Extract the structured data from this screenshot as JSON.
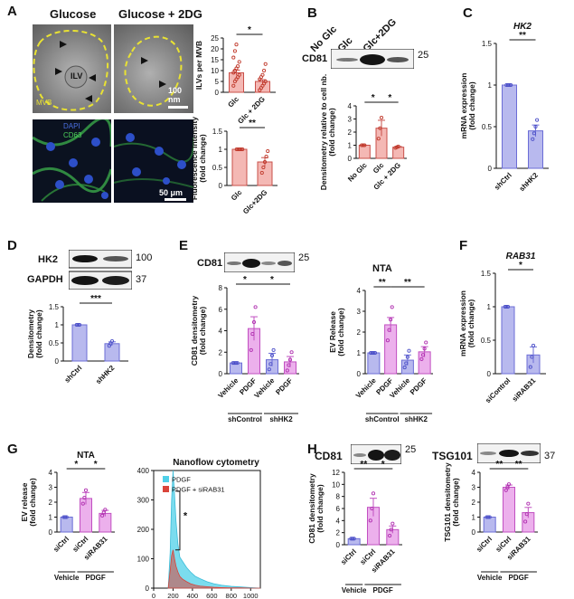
{
  "panel_labels": [
    "A",
    "B",
    "C",
    "D",
    "E",
    "F",
    "G",
    "H"
  ],
  "colors": {
    "red_fill": "#f4b8b4",
    "red_edge": "#c9504a",
    "red_dot": "#c0392b",
    "blue_fill": "#b8b9ee",
    "blue_edge": "#6b6dd6",
    "blue_dot": "#4b4fc8",
    "pink_fill": "#ecb0ec",
    "pink_edge": "#c14fc1",
    "pink_dot": "#b030b0",
    "yellow": "#e9e233",
    "cyan": "#3bbcd8",
    "cyan_fill": "#4fd0e8",
    "red_hist": "#d9443a",
    "blot_band": "#141414"
  },
  "panel_A": {
    "img_labels": [
      "Glucose",
      "Glucose + 2DG"
    ],
    "em_annotations": {
      "ilv": "ILV",
      "mvb": "MVB",
      "scale_em": "100 nm"
    },
    "if_annotations": {
      "dapi": "DAPI",
      "cd63": "CD63",
      "scale_if": "50 μm"
    }
  },
  "panel_B": {
    "lanes": [
      "No Glc",
      "Glc",
      "Glc+2DG"
    ],
    "blot_label": "CD81",
    "mw": "25"
  },
  "panel_D": {
    "blots": [
      "HK2",
      "GAPDH"
    ],
    "mw": [
      "100",
      "37"
    ]
  },
  "panel_E": {
    "blot_label": "CD81",
    "mw": "25",
    "nta_title": "NTA"
  },
  "panel_H": {
    "blots": [
      "CD81",
      "TSG101"
    ],
    "mw": [
      "25",
      "37"
    ]
  },
  "chart_data": [
    {
      "id": "A_ilv",
      "type": "bar",
      "panel": "A",
      "ylabel": "ILVs per MVB",
      "ylim": [
        0,
        25
      ],
      "yticks": [
        0,
        5,
        10,
        15,
        20,
        25
      ],
      "categories": [
        "Glc",
        "Glc + 2DG"
      ],
      "values": [
        9,
        5
      ],
      "errors": [
        1.2,
        0.8
      ],
      "dots": [
        [
          3,
          5,
          6,
          7,
          8,
          9,
          10,
          11,
          12,
          14,
          16,
          19,
          22
        ],
        [
          1,
          2,
          3,
          4,
          5,
          6,
          7,
          8,
          10,
          13
        ]
      ],
      "color": "red",
      "sig": [
        {
          "a": 0,
          "b": 1,
          "text": "*"
        }
      ]
    },
    {
      "id": "A_fluor",
      "type": "bar",
      "panel": "A",
      "ylabel": "Fluorescence Intensity (fold change)",
      "ylim": [
        0,
        1.5
      ],
      "yticks": [
        0,
        0.5,
        1,
        1.5
      ],
      "categories": [
        "Glc",
        "Glc+2DG"
      ],
      "values": [
        1,
        0.65
      ],
      "errors": [
        0,
        0.12
      ],
      "dots": [
        [
          1,
          1,
          1,
          1,
          1
        ],
        [
          0.35,
          0.5,
          0.65,
          0.8,
          0.95
        ]
      ],
      "color": "red",
      "sig": [
        {
          "a": 0,
          "b": 1,
          "text": "**"
        }
      ]
    },
    {
      "id": "B",
      "type": "bar",
      "panel": "B",
      "ylabel": "Densitometry relative to cell nb. (fold change)",
      "ylim": [
        0,
        4
      ],
      "yticks": [
        0,
        1,
        2,
        3,
        4
      ],
      "categories": [
        "No Glc",
        "Glc",
        "Glc + 2DG"
      ],
      "values": [
        1,
        2.3,
        0.85
      ],
      "errors": [
        0,
        0.6,
        0.05
      ],
      "dots": [
        [
          1,
          1,
          1
        ],
        [
          1.5,
          2.3,
          3.1
        ],
        [
          0.8,
          0.85,
          0.9
        ]
      ],
      "color": "red",
      "sig": [
        {
          "a": 0,
          "b": 1,
          "text": "*"
        },
        {
          "a": 1,
          "b": 2,
          "text": "*"
        }
      ]
    },
    {
      "id": "C",
      "type": "bar",
      "panel": "C",
      "title": "HK2",
      "ylabel": "mRNA expression (fold change)",
      "ylim": [
        0,
        1.5
      ],
      "yticks": [
        0,
        0.5,
        1,
        1.5
      ],
      "categories": [
        "shCtrl",
        "shHK2"
      ],
      "values": [
        1,
        0.45
      ],
      "errors": [
        0,
        0.07
      ],
      "dots": [
        [
          1,
          1,
          1,
          1
        ],
        [
          0.35,
          0.42,
          0.5,
          0.58
        ]
      ],
      "color": "blue",
      "sig": [
        {
          "a": 0,
          "b": 1,
          "text": "**"
        }
      ]
    },
    {
      "id": "D",
      "type": "bar",
      "panel": "D",
      "ylabel": "Densitometry (fold change)",
      "ylim": [
        0,
        1.5
      ],
      "yticks": [
        0,
        0.5,
        1,
        1.5
      ],
      "categories": [
        "shCtrl",
        "shHK2"
      ],
      "values": [
        1,
        0.48
      ],
      "errors": [
        0,
        0.05
      ],
      "dots": [
        [
          1,
          1,
          1
        ],
        [
          0.42,
          0.48,
          0.55
        ]
      ],
      "color": "blue",
      "sig": [
        {
          "a": 0,
          "b": 1,
          "text": "***"
        }
      ]
    },
    {
      "id": "E_cd81",
      "type": "bar",
      "panel": "E",
      "ylabel": "CD81 densitometry (fold change)",
      "ylim": [
        0,
        8
      ],
      "yticks": [
        0,
        2,
        4,
        6,
        8
      ],
      "categories": [
        "Vehicle",
        "PDGF",
        "Vehicle",
        "PDGF"
      ],
      "groups": [
        {
          "label": "shControl",
          "from": 0,
          "to": 1
        },
        {
          "label": "shHK2",
          "from": 2,
          "to": 3
        }
      ],
      "values": [
        1,
        4.2,
        1.3,
        1.1
      ],
      "errors": [
        0,
        1.1,
        0.6,
        0.5
      ],
      "dots": [
        [
          1,
          1,
          1,
          1
        ],
        [
          2.2,
          3.7,
          4.8,
          6.2
        ],
        [
          0.4,
          0.9,
          1.7,
          2.2
        ],
        [
          0.3,
          0.8,
          1.3,
          2
        ]
      ],
      "colors": [
        "blue",
        "pink",
        "blue",
        "pink"
      ],
      "sig": [
        {
          "a": 0,
          "b": 1,
          "text": "*"
        },
        {
          "a": 1,
          "b": 3,
          "text": "*"
        }
      ]
    },
    {
      "id": "E_nta",
      "type": "bar",
      "panel": "E",
      "ylabel": "EV Release (fold change)",
      "ylim": [
        0,
        4
      ],
      "yticks": [
        0,
        1,
        2,
        3,
        4
      ],
      "categories": [
        "Vehicle",
        "PDGF",
        "Vehicle",
        "PDGF"
      ],
      "groups": [
        {
          "label": "shControl",
          "from": 0,
          "to": 1
        },
        {
          "label": "shHK2",
          "from": 2,
          "to": 3
        }
      ],
      "values": [
        1,
        2.35,
        0.65,
        1.05
      ],
      "errors": [
        0,
        0.35,
        0.25,
        0.25
      ],
      "dots": [
        [
          1,
          1,
          1,
          1
        ],
        [
          1.6,
          2.1,
          2.6,
          3.2
        ],
        [
          0.3,
          0.5,
          0.8,
          1.1
        ],
        [
          0.7,
          0.9,
          1.2,
          1.5
        ]
      ],
      "colors": [
        "blue",
        "pink",
        "blue",
        "pink"
      ],
      "sig": [
        {
          "a": 0,
          "b": 1,
          "text": "**"
        },
        {
          "a": 1,
          "b": 3,
          "text": "**"
        }
      ]
    },
    {
      "id": "F",
      "type": "bar",
      "panel": "F",
      "title": "RAB31",
      "ylabel": "mRNA expression (fold change)",
      "ylim": [
        0,
        1.5
      ],
      "yticks": [
        0,
        0.5,
        1,
        1.5
      ],
      "categories": [
        "siControl",
        "siRAB31"
      ],
      "values": [
        1,
        0.28
      ],
      "errors": [
        0,
        0.12
      ],
      "dots": [
        [
          1,
          1,
          1
        ],
        [
          0.1,
          0.25,
          0.42
        ]
      ],
      "color": "blue",
      "sig": [
        {
          "a": 0,
          "b": 1,
          "text": "*"
        }
      ]
    },
    {
      "id": "G_nta",
      "type": "bar",
      "panel": "G",
      "title": "NTA",
      "ylabel": "EV release (fold change)",
      "ylim": [
        0,
        4
      ],
      "yticks": [
        0,
        1,
        2,
        3,
        4
      ],
      "categories": [
        "siCtrl",
        "siCtrl",
        "siRAB31"
      ],
      "groups": [
        {
          "label": "Vehicle",
          "from": 0,
          "to": 0
        },
        {
          "label": "PDGF",
          "from": 1,
          "to": 2
        }
      ],
      "values": [
        1,
        2.25,
        1.25
      ],
      "errors": [
        0,
        0.4,
        0.2
      ],
      "dots": [
        [
          1,
          1,
          1
        ],
        [
          1.9,
          2.3,
          2.8
        ],
        [
          1.1,
          1.3,
          1.5
        ]
      ],
      "colors": [
        "blue",
        "pink",
        "pink"
      ],
      "sig": [
        {
          "a": 0,
          "b": 1,
          "text": "*"
        },
        {
          "a": 1,
          "b": 2,
          "text": "*"
        }
      ]
    },
    {
      "id": "G_flow",
      "type": "area",
      "panel": "G",
      "title": "Nanoflow cytometry",
      "xlim": [
        0,
        1100
      ],
      "ylim": [
        0,
        400
      ],
      "xticks": [
        0,
        200,
        400,
        600,
        800,
        1000
      ],
      "yticks": [
        0,
        100,
        200,
        300,
        400
      ],
      "legend": [
        "PDGF",
        "PDGF + siRAB31"
      ],
      "sig_text": "*",
      "series": [
        {
          "name": "PDGF",
          "x": [
            150,
            170,
            185,
            200,
            215,
            230,
            250,
            270,
            300,
            340,
            380,
            430,
            480,
            550,
            620,
            700,
            800,
            900,
            1000,
            1100
          ],
          "y": [
            0,
            120,
            300,
            400,
            320,
            230,
            150,
            105,
            90,
            70,
            55,
            40,
            32,
            22,
            15,
            10,
            6,
            4,
            2,
            0
          ]
        },
        {
          "name": "PDGF + siRAB31",
          "x": [
            150,
            170,
            185,
            200,
            215,
            230,
            250,
            270,
            300,
            340,
            380,
            430,
            480,
            550,
            620,
            700,
            800,
            900,
            1000,
            1100
          ],
          "y": [
            0,
            60,
            110,
            130,
            100,
            75,
            55,
            40,
            30,
            22,
            15,
            10,
            7,
            5,
            3,
            2,
            1,
            1,
            0,
            0
          ]
        }
      ]
    },
    {
      "id": "H_cd81",
      "type": "bar",
      "panel": "H",
      "ylabel": "CD81 densitometry (fold change)",
      "ylim": [
        0,
        12
      ],
      "yticks": [
        0,
        2,
        4,
        6,
        8,
        10,
        12
      ],
      "categories": [
        "siCtrl",
        "siCtrl",
        "siRAB31"
      ],
      "groups": [
        {
          "label": "Vehicle",
          "from": 0,
          "to": 0
        },
        {
          "label": "PDGF",
          "from": 1,
          "to": 2
        }
      ],
      "values": [
        1,
        6.2,
        2.5
      ],
      "errors": [
        0,
        1.5,
        0.6
      ],
      "dots": [
        [
          1,
          1,
          1
        ],
        [
          4,
          6,
          8.5
        ],
        [
          1.5,
          2.5,
          3.5
        ]
      ],
      "colors": [
        "blue",
        "pink",
        "pink"
      ],
      "sig": [
        {
          "a": 0,
          "b": 1,
          "text": "**"
        },
        {
          "a": 1,
          "b": 2,
          "text": "*"
        }
      ]
    },
    {
      "id": "H_tsg",
      "type": "bar",
      "panel": "H",
      "ylabel": "TSG101 densitometry (fold change)",
      "ylim": [
        0,
        4
      ],
      "yticks": [
        0,
        1,
        2,
        3,
        4
      ],
      "categories": [
        "siCtrl",
        "siCtrl",
        "siRAB31"
      ],
      "groups": [
        {
          "label": "Vehicle",
          "from": 0,
          "to": 0
        },
        {
          "label": "PDGF",
          "from": 1,
          "to": 2
        }
      ],
      "values": [
        1,
        3,
        1.3
      ],
      "errors": [
        0,
        0.15,
        0.35
      ],
      "dots": [
        [
          1,
          1,
          1
        ],
        [
          2.8,
          3,
          3.2
        ],
        [
          0.7,
          1.2,
          1.9
        ]
      ],
      "colors": [
        "blue",
        "pink",
        "pink"
      ],
      "sig": [
        {
          "a": 0,
          "b": 1,
          "text": "**"
        },
        {
          "a": 1,
          "b": 2,
          "text": "**"
        }
      ]
    }
  ]
}
